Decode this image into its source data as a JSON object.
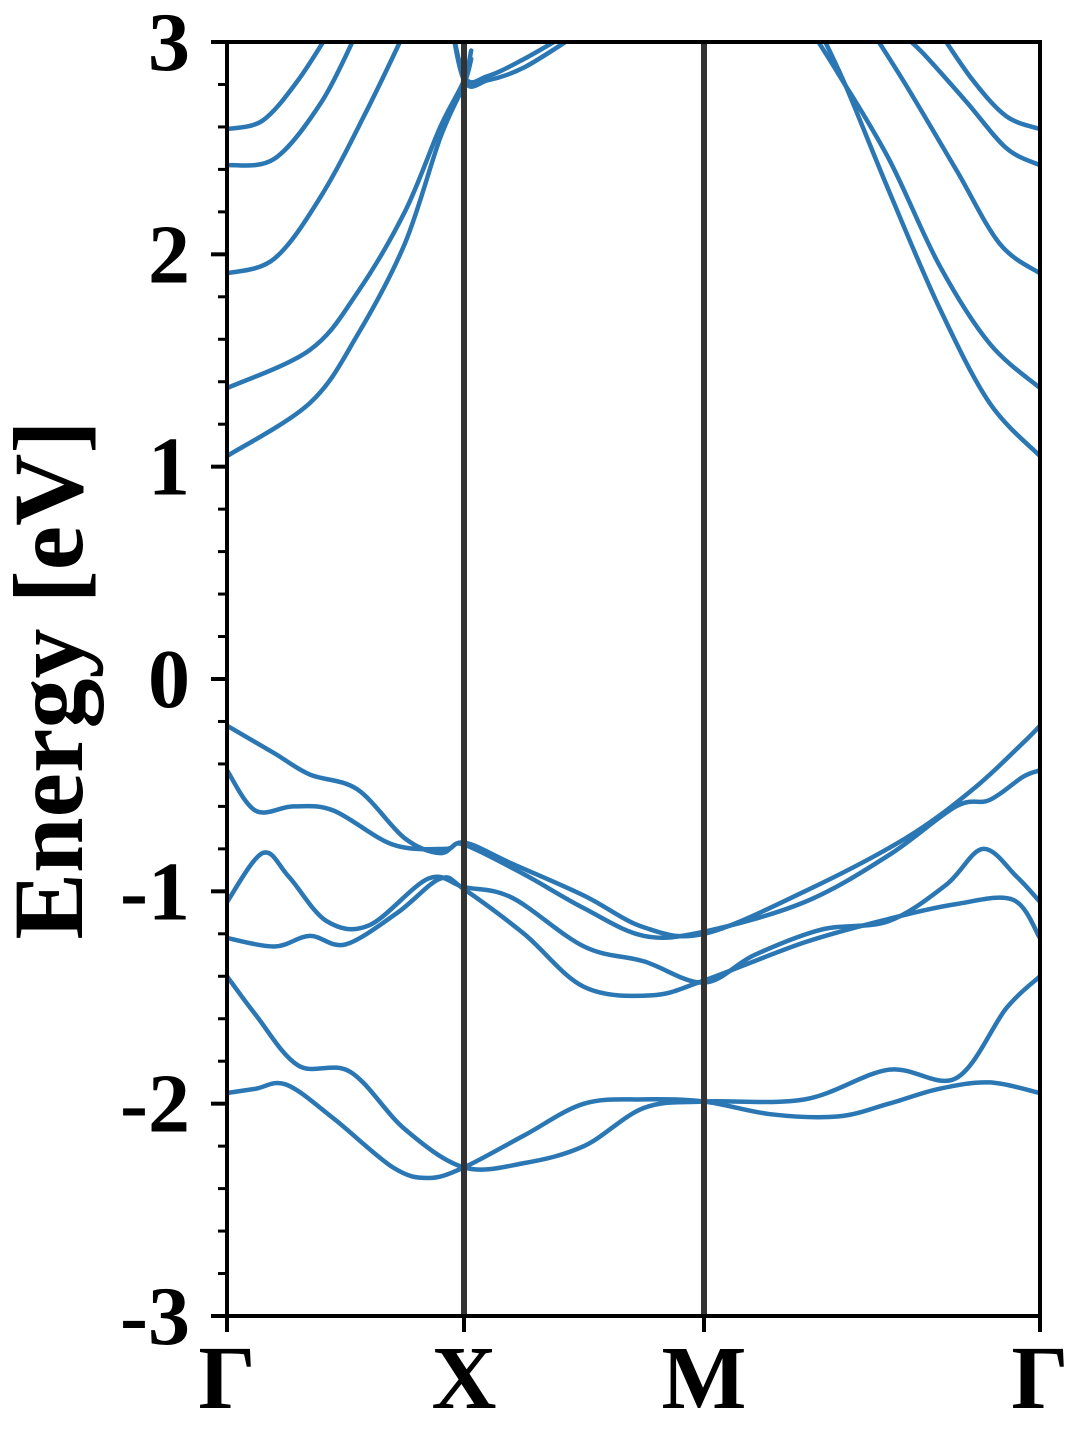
{
  "chart_data": {
    "type": "line",
    "title": "",
    "xlabel": "",
    "ylabel": "Energy [eV]",
    "ylim": [
      -3,
      3
    ],
    "yticks": [
      3,
      2,
      1,
      0,
      -1,
      -2,
      -3
    ],
    "ytick_labels": [
      "3",
      "2",
      "1",
      "0",
      "-1",
      "-2",
      "-3"
    ],
    "xticks": [
      0,
      1,
      2,
      3
    ],
    "xtick_labels": [
      "Γ",
      "X",
      "M",
      "Γ"
    ],
    "k_segment_lengths": [
      1.0,
      1.0,
      1.41
    ],
    "grid": false,
    "legend": "none",
    "colors": {
      "bands": "#2a77b4",
      "vlines": "#333333",
      "axes": "#000000"
    },
    "series": [
      {
        "x": [
          0,
          0.2,
          0.35,
          0.55,
          0.75,
          0.9,
          1.0,
          1.2,
          1.5,
          1.75,
          2.0,
          2.3,
          2.6,
          2.8,
          2.95,
          3.0
        ],
        "values": [
          -0.22,
          -0.35,
          -0.45,
          -0.52,
          -0.75,
          -0.82,
          -0.77,
          -0.87,
          -1.02,
          -1.17,
          -1.2,
          -1.0,
          -0.75,
          -0.52,
          -0.3,
          -0.22
        ]
      },
      {
        "x": [
          0,
          0.12,
          0.28,
          0.45,
          0.7,
          0.92,
          1.0,
          1.25,
          1.5,
          1.75,
          2.0,
          2.3,
          2.55,
          2.75,
          2.85,
          2.95,
          3.0
        ],
        "values": [
          -0.43,
          -0.62,
          -0.6,
          -0.62,
          -0.78,
          -0.8,
          -0.78,
          -0.92,
          -1.08,
          -1.21,
          -1.19,
          -1.05,
          -0.83,
          -0.6,
          -0.57,
          -0.46,
          -0.43
        ]
      },
      {
        "x": [
          0,
          0.15,
          0.26,
          0.42,
          0.6,
          0.85,
          1.0,
          1.2,
          1.5,
          1.75,
          2.0,
          2.15,
          2.35,
          2.55,
          2.72,
          2.83,
          2.93,
          3.0
        ],
        "values": [
          -1.05,
          -0.82,
          -0.93,
          -1.14,
          -1.16,
          -0.94,
          -0.98,
          -1.03,
          -1.26,
          -1.33,
          -1.43,
          -1.3,
          -1.18,
          -1.14,
          -0.97,
          -0.8,
          -0.93,
          -1.05
        ]
      },
      {
        "x": [
          0,
          0.2,
          0.35,
          0.5,
          0.72,
          0.9,
          1.0,
          1.25,
          1.5,
          1.78,
          2.0,
          2.3,
          2.55,
          2.75,
          2.92,
          3.0
        ],
        "values": [
          -1.22,
          -1.26,
          -1.21,
          -1.25,
          -1.1,
          -0.94,
          -0.99,
          -1.2,
          -1.45,
          -1.49,
          -1.42,
          -1.24,
          -1.13,
          -1.06,
          -1.04,
          -1.22
        ]
      },
      {
        "x": [
          0,
          0.12,
          0.3,
          0.52,
          0.75,
          1.0,
          1.25,
          1.5,
          1.75,
          2.0,
          2.3,
          2.55,
          2.75,
          2.9,
          3.0
        ],
        "values": [
          -1.4,
          -1.58,
          -1.82,
          -1.85,
          -2.12,
          -2.3,
          -2.28,
          -2.2,
          -2.02,
          -1.99,
          -1.98,
          -1.84,
          -1.88,
          -1.55,
          -1.4
        ]
      },
      {
        "x": [
          0,
          0.12,
          0.25,
          0.45,
          0.7,
          0.85,
          1.0,
          1.25,
          1.5,
          1.75,
          2.0,
          2.2,
          2.4,
          2.55,
          2.7,
          2.85,
          3.0
        ],
        "values": [
          -1.95,
          -1.93,
          -1.91,
          -2.07,
          -2.3,
          -2.35,
          -2.3,
          -2.15,
          -2.0,
          -1.98,
          -1.99,
          -2.05,
          -2.06,
          -2.0,
          -1.93,
          -1.9,
          -1.95
        ]
      },
      {
        "x": [
          0,
          0.35,
          0.55,
          0.75,
          0.9,
          1.0,
          1.03
        ],
        "values": [
          1.05,
          1.3,
          1.62,
          2.05,
          2.55,
          2.8,
          2.92
        ]
      },
      {
        "x": [
          0,
          0.35,
          0.55,
          0.75,
          0.9,
          1.0,
          1.03
        ],
        "values": [
          1.37,
          1.55,
          1.82,
          2.2,
          2.6,
          2.82,
          2.96
        ]
      },
      {
        "x": [
          0,
          0.2,
          0.4,
          0.6,
          0.78
        ],
        "values": [
          1.91,
          1.98,
          2.28,
          2.7,
          3.12
        ]
      },
      {
        "x": [
          0,
          0.2,
          0.4,
          0.55
        ],
        "values": [
          2.42,
          2.45,
          2.72,
          3.05
        ]
      },
      {
        "x": [
          0,
          0.15,
          0.3,
          0.45
        ],
        "values": [
          2.59,
          2.63,
          2.82,
          3.08
        ]
      },
      {
        "x": [
          0.93,
          1.0,
          1.1,
          1.25,
          1.45
        ],
        "values": [
          3.2,
          2.84,
          2.84,
          2.92,
          3.05
        ]
      },
      {
        "x": [
          0.93,
          1.0,
          1.1,
          1.25,
          1.45
        ],
        "values": [
          3.2,
          2.82,
          2.82,
          2.88,
          3.02
        ]
      },
      {
        "x": [
          3.0,
          2.85,
          2.7,
          2.55,
          2.42,
          2.33
        ],
        "values": [
          1.05,
          1.3,
          1.75,
          2.3,
          2.8,
          3.1
        ]
      },
      {
        "x": [
          3.0,
          2.85,
          2.7,
          2.55,
          2.4,
          2.3
        ],
        "values": [
          1.37,
          1.58,
          1.95,
          2.45,
          2.85,
          3.1
        ]
      },
      {
        "x": [
          3.0,
          2.88,
          2.75,
          2.6,
          2.5
        ],
        "values": [
          1.91,
          2.05,
          2.4,
          2.8,
          3.05
        ]
      },
      {
        "x": [
          3.0,
          2.9,
          2.78,
          2.65,
          2.58
        ],
        "values": [
          2.42,
          2.5,
          2.72,
          2.95,
          3.05
        ]
      },
      {
        "x": [
          3.0,
          2.9,
          2.8,
          2.7
        ],
        "values": [
          2.59,
          2.65,
          2.82,
          3.05
        ]
      }
    ]
  }
}
